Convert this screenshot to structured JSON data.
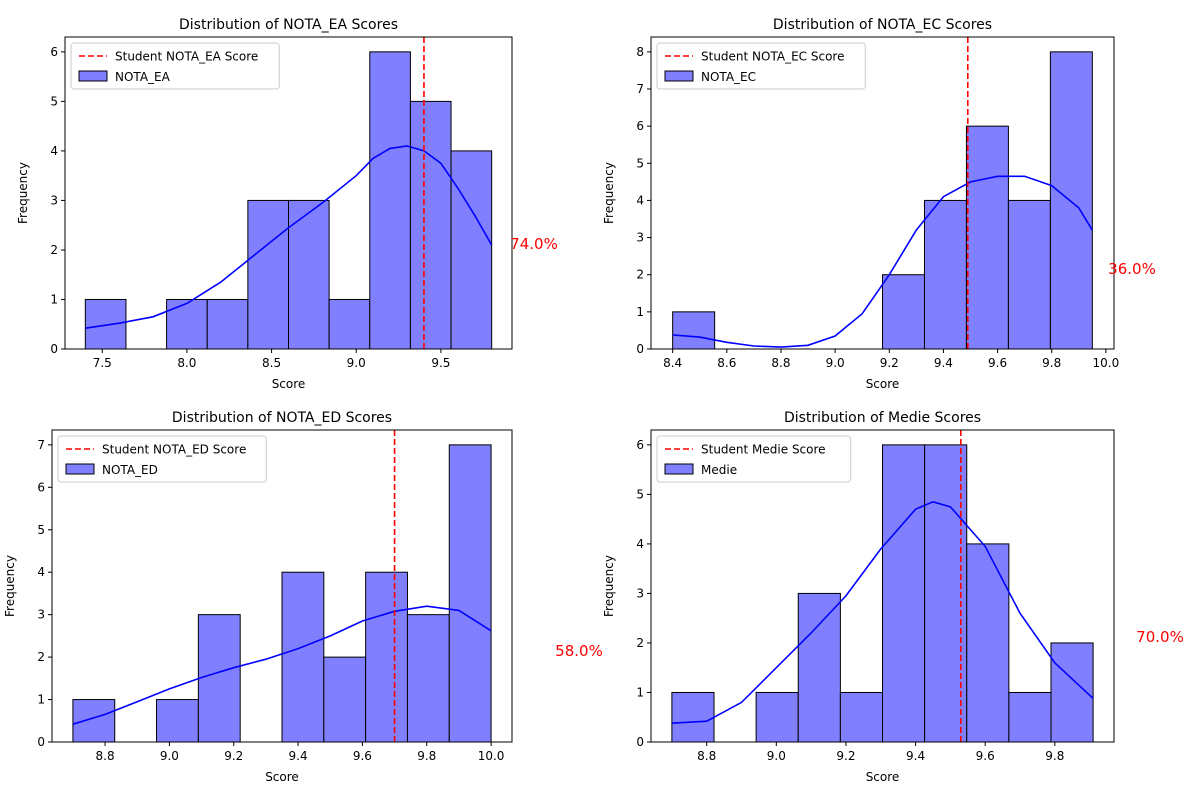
{
  "colors": {
    "bar": "#8080ff",
    "kde": "#0000ff",
    "student_line": "#ff0000",
    "percentile": "#ff0000"
  },
  "chart_data": [
    {
      "type": "bar",
      "title": "Distribution of NOTA_EA Scores",
      "xlabel": "Score",
      "ylabel": "Frequency",
      "xlim": [
        7.28,
        9.92
      ],
      "ylim": [
        0,
        6.3
      ],
      "xticks": [
        7.5,
        8.0,
        8.5,
        9.0,
        9.5
      ],
      "xtick_labels": [
        "7.5",
        "8.0",
        "8.5",
        "9.0",
        "9.5"
      ],
      "yticks": [
        0,
        1,
        2,
        3,
        4,
        5,
        6
      ],
      "bin_edges": [
        7.4,
        7.64,
        7.88,
        8.12,
        8.36,
        8.6,
        8.84,
        9.08,
        9.32,
        9.56,
        9.8
      ],
      "counts": [
        1,
        0,
        1,
        1,
        3,
        3,
        1,
        6,
        5,
        4
      ],
      "kde": [
        [
          7.4,
          0.42
        ],
        [
          7.6,
          0.52
        ],
        [
          7.8,
          0.65
        ],
        [
          8.0,
          0.92
        ],
        [
          8.2,
          1.35
        ],
        [
          8.4,
          1.9
        ],
        [
          8.6,
          2.45
        ],
        [
          8.8,
          2.95
        ],
        [
          9.0,
          3.5
        ],
        [
          9.1,
          3.85
        ],
        [
          9.2,
          4.05
        ],
        [
          9.3,
          4.1
        ],
        [
          9.4,
          4.0
        ],
        [
          9.5,
          3.75
        ],
        [
          9.6,
          3.25
        ],
        [
          9.7,
          2.7
        ],
        [
          9.8,
          2.1
        ]
      ],
      "student_score": 9.4,
      "legend": [
        "Student NOTA_EA Score",
        "NOTA_EA"
      ],
      "legend_position": "upper-left",
      "percentile_label": "74.0%"
    },
    {
      "type": "bar",
      "title": "Distribution of NOTA_EC Scores",
      "xlabel": "Score",
      "ylabel": "Frequency",
      "xlim": [
        8.32,
        10.03
      ],
      "ylim": [
        0,
        8.4
      ],
      "xticks": [
        8.4,
        8.6,
        8.8,
        9.0,
        9.2,
        9.4,
        9.6,
        9.8,
        10.0
      ],
      "xtick_labels": [
        "8.4",
        "8.6",
        "8.8",
        "9.0",
        "9.2",
        "9.4",
        "9.6",
        "9.8",
        "10.0"
      ],
      "yticks": [
        0,
        1,
        2,
        3,
        4,
        5,
        6,
        7,
        8
      ],
      "bin_edges": [
        8.4,
        8.555,
        8.71,
        8.865,
        9.02,
        9.175,
        9.33,
        9.485,
        9.64,
        9.795,
        9.95
      ],
      "counts": [
        1,
        0,
        0,
        0,
        0,
        2,
        4,
        6,
        4,
        8
      ],
      "kde": [
        [
          8.4,
          0.38
        ],
        [
          8.5,
          0.32
        ],
        [
          8.6,
          0.18
        ],
        [
          8.7,
          0.08
        ],
        [
          8.8,
          0.05
        ],
        [
          8.9,
          0.1
        ],
        [
          9.0,
          0.35
        ],
        [
          9.1,
          0.95
        ],
        [
          9.2,
          2.0
        ],
        [
          9.3,
          3.2
        ],
        [
          9.4,
          4.1
        ],
        [
          9.5,
          4.5
        ],
        [
          9.6,
          4.65
        ],
        [
          9.7,
          4.65
        ],
        [
          9.8,
          4.4
        ],
        [
          9.9,
          3.8
        ],
        [
          9.95,
          3.2
        ]
      ],
      "student_score": 9.49,
      "legend": [
        "Student NOTA_EC Score",
        "NOTA_EC"
      ],
      "legend_position": "upper-left",
      "percentile_label": "36.0%"
    },
    {
      "type": "bar",
      "title": "Distribution of NOTA_ED Scores",
      "xlabel": "Score",
      "ylabel": "Frequency",
      "xlim": [
        8.635,
        10.065
      ],
      "ylim": [
        0,
        7.35
      ],
      "xticks": [
        8.8,
        9.0,
        9.2,
        9.4,
        9.6,
        9.8,
        10.0
      ],
      "xtick_labels": [
        "8.8",
        "9.0",
        "9.2",
        "9.4",
        "9.6",
        "9.8",
        "10.0"
      ],
      "yticks": [
        0,
        1,
        2,
        3,
        4,
        5,
        6,
        7
      ],
      "bin_edges": [
        8.7,
        8.83,
        8.96,
        9.09,
        9.22,
        9.35,
        9.48,
        9.61,
        9.74,
        9.87,
        10.0
      ],
      "counts": [
        1,
        0,
        1,
        3,
        0,
        4,
        2,
        4,
        3,
        7
      ],
      "kde": [
        [
          8.7,
          0.42
        ],
        [
          8.8,
          0.65
        ],
        [
          8.9,
          0.95
        ],
        [
          9.0,
          1.25
        ],
        [
          9.1,
          1.52
        ],
        [
          9.2,
          1.75
        ],
        [
          9.3,
          1.95
        ],
        [
          9.4,
          2.2
        ],
        [
          9.5,
          2.5
        ],
        [
          9.6,
          2.85
        ],
        [
          9.7,
          3.08
        ],
        [
          9.8,
          3.2
        ],
        [
          9.9,
          3.1
        ],
        [
          10.0,
          2.62
        ]
      ],
      "student_score": 9.7,
      "legend": [
        "Student NOTA_ED Score",
        "NOTA_ED"
      ],
      "legend_position": "upper-left",
      "percentile_label": "58.0%"
    },
    {
      "type": "bar",
      "title": "Distribution of Medie Scores",
      "xlabel": "Score",
      "ylabel": "Frequency",
      "xlim": [
        8.64,
        9.97
      ],
      "ylim": [
        0,
        6.3
      ],
      "xticks": [
        8.8,
        9.0,
        9.2,
        9.4,
        9.6,
        9.8
      ],
      "xtick_labels": [
        "8.8",
        "9.0",
        "9.2",
        "9.4",
        "9.6",
        "9.8"
      ],
      "yticks": [
        0,
        1,
        2,
        3,
        4,
        5,
        6
      ],
      "bin_edges": [
        8.7,
        8.821,
        8.942,
        9.063,
        9.184,
        9.305,
        9.426,
        9.547,
        9.668,
        9.789,
        9.91
      ],
      "counts": [
        1,
        0,
        1,
        3,
        1,
        6,
        6,
        4,
        1,
        2
      ],
      "kde": [
        [
          8.7,
          0.38
        ],
        [
          8.8,
          0.42
        ],
        [
          8.9,
          0.8
        ],
        [
          9.0,
          1.5
        ],
        [
          9.1,
          2.2
        ],
        [
          9.2,
          2.95
        ],
        [
          9.3,
          3.9
        ],
        [
          9.4,
          4.7
        ],
        [
          9.45,
          4.85
        ],
        [
          9.5,
          4.75
        ],
        [
          9.6,
          3.95
        ],
        [
          9.7,
          2.6
        ],
        [
          9.8,
          1.6
        ],
        [
          9.91,
          0.88
        ]
      ],
      "student_score": 9.53,
      "legend": [
        "Student Medie Score",
        "Medie"
      ],
      "legend_position": "upper-left",
      "percentile_label": "70.0%"
    }
  ]
}
